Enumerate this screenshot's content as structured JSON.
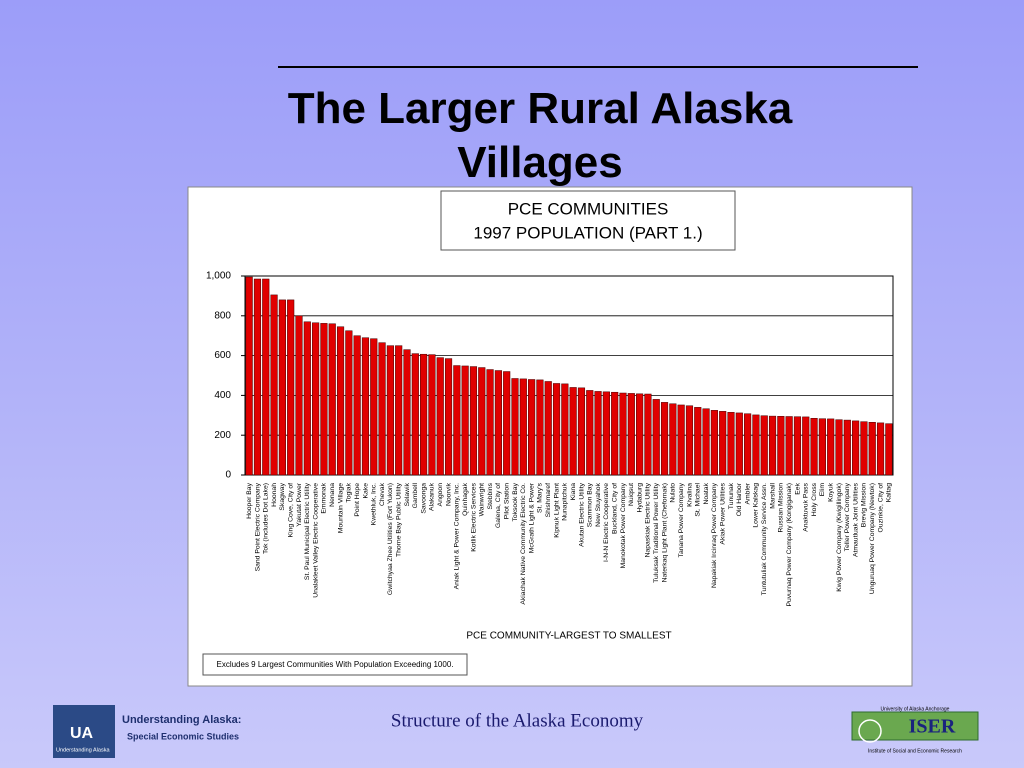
{
  "slide": {
    "title": "The Larger Rural Alaska Villages",
    "footer": "Structure of the Alaska Economy",
    "left_logo": {
      "mark": "UA",
      "caption": "Understanding Alaska",
      "title": "Understanding Alaska:",
      "subtitle": "Special Economic Studies"
    },
    "right_logo": {
      "top": "University of Alaska Anchorage",
      "mark": "ISER",
      "bottom": "Institute of Social and Economic Research"
    }
  },
  "chart_data": {
    "type": "bar",
    "title": "PCE COMMUNITIES",
    "subtitle": "1997 POPULATION (PART 1.)",
    "x_label": "PCE COMMUNITY-LARGEST TO SMALLEST",
    "note": "Excludes 9 Largest Communities With Population Exceeding 1000.",
    "color": "#e00000",
    "grid": true,
    "ylim": [
      0,
      1000
    ],
    "yticks": [
      0,
      200,
      400,
      600,
      800,
      {
        "value": 1000,
        "label": "1,000"
      }
    ],
    "categories": [
      "Hooper Bay",
      "Sand Point Electric Company",
      "Tok (includes Dot Lake)",
      "Hoonah",
      "Skagway",
      "King Cove, City of",
      "Yakutat Power",
      "St. Paul Municipal Electric Utility",
      "Unalakleet Valley Electric Cooperative",
      "Emmonak",
      "Nenana",
      "Mountain Village",
      "Togiak",
      "Point Hope",
      "Kake",
      "Kwethluk, Inc.",
      "Chevak",
      "Gwitchyaa Zhee Utilities (Fort Yukon)",
      "Thorne Bay Public Utility",
      "Selawik",
      "Gambell",
      "Savoonga",
      "Alakanuk",
      "Angoon",
      "Noorvik",
      "Aniak Light & Power Company, Inc.",
      "Quinhagak",
      "Kotlik Electric Services",
      "Wainwright",
      "Stebbins",
      "Galena, City of",
      "Pilot Station",
      "Toksook Bay",
      "Akiachak Native Community Electric Co.",
      "McGrath Light & Power",
      "St. Mary's",
      "Shishmaref",
      "Kipnuk Light Plant",
      "Nunapitchuk",
      "Kiana",
      "Akutan Electric Utility",
      "Scammon Bay",
      "New Stuyahok",
      "I-N-N Electric Cooperative",
      "Buckland, City of",
      "Manokotak Power Company",
      "Nuiqsut",
      "Hydaburg",
      "Napaskiak Electric Utility",
      "Tuluksak Traditional Power Utility",
      "Naterkaq Light Plant (Chefornak)",
      "Nulato",
      "Tanana Power Company",
      "Kivalina",
      "St. Michael",
      "Noatak",
      "Napakiak Ircinraq Power Company",
      "Akiak Power Utilities",
      "Tununak",
      "Old Harbor",
      "Ambler",
      "Lower Kalskag",
      "Tuntutuliak Community Service Assn.",
      "Marshall",
      "Russian Mission",
      "Puvurnaq Power Company (Kongiganak)",
      "Eek",
      "Anaktuvuk Pass",
      "Holy Cross",
      "Elim",
      "Koyuk",
      "Kwig Power Company (Kwigillingok)",
      "Teller Power Company",
      "Atmautluak Joint Utilities",
      "Brevig Mission",
      "Unguruaq Power Company (Newtok)",
      "Ouzinkie, City of",
      "Kaltag"
    ],
    "values": [
      995,
      985,
      985,
      905,
      880,
      880,
      800,
      770,
      765,
      762,
      760,
      745,
      725,
      700,
      690,
      685,
      665,
      650,
      650,
      630,
      610,
      607,
      605,
      590,
      585,
      550,
      548,
      545,
      540,
      530,
      525,
      520,
      485,
      483,
      480,
      478,
      470,
      460,
      458,
      440,
      438,
      425,
      420,
      418,
      416,
      412,
      410,
      408,
      407,
      380,
      365,
      358,
      352,
      348,
      340,
      333,
      325,
      320,
      315,
      312,
      308,
      302,
      298,
      296,
      295,
      294,
      293,
      292,
      285,
      283,
      282,
      278,
      276,
      272,
      268,
      265,
      262,
      258
    ]
  }
}
